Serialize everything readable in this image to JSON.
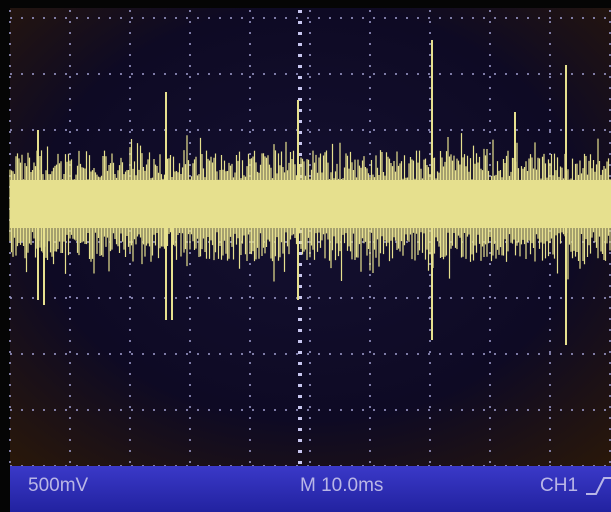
{
  "status_bar": {
    "vertical_scale": "500mV",
    "timebase": "M 10.0ms",
    "channel": "CH1"
  }
}
